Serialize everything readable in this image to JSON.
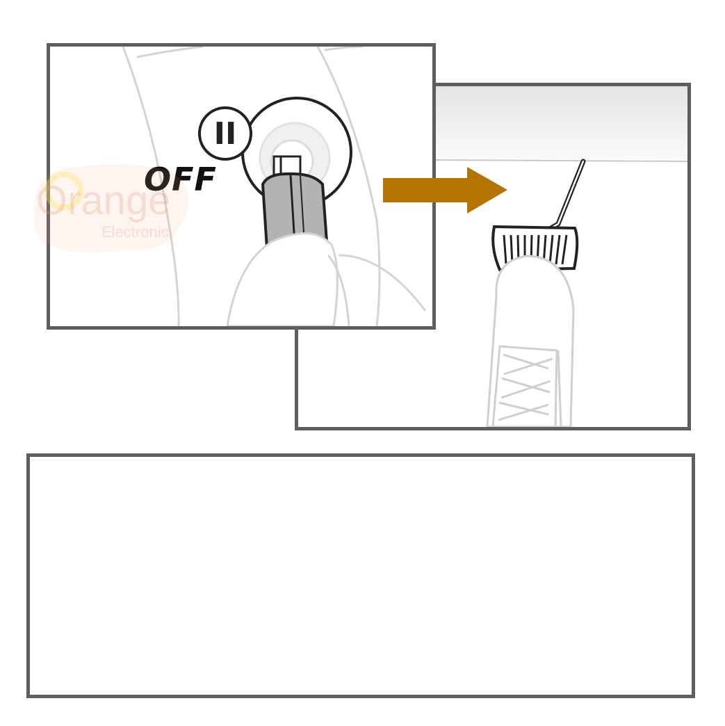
{
  "ignition_panel": {
    "switch_position_label": "OFF",
    "position_numeral": "II"
  },
  "watermark": {
    "main_text": "Orange",
    "sub_text": "Electronic"
  },
  "colors": {
    "arrow": "#b57400",
    "frame": "#5e5e5e"
  },
  "icons": [
    "ignition-switch-icon",
    "key-icon",
    "hand-icon",
    "right-arrow-icon",
    "brake-pedal-icon",
    "foot-icon"
  ]
}
